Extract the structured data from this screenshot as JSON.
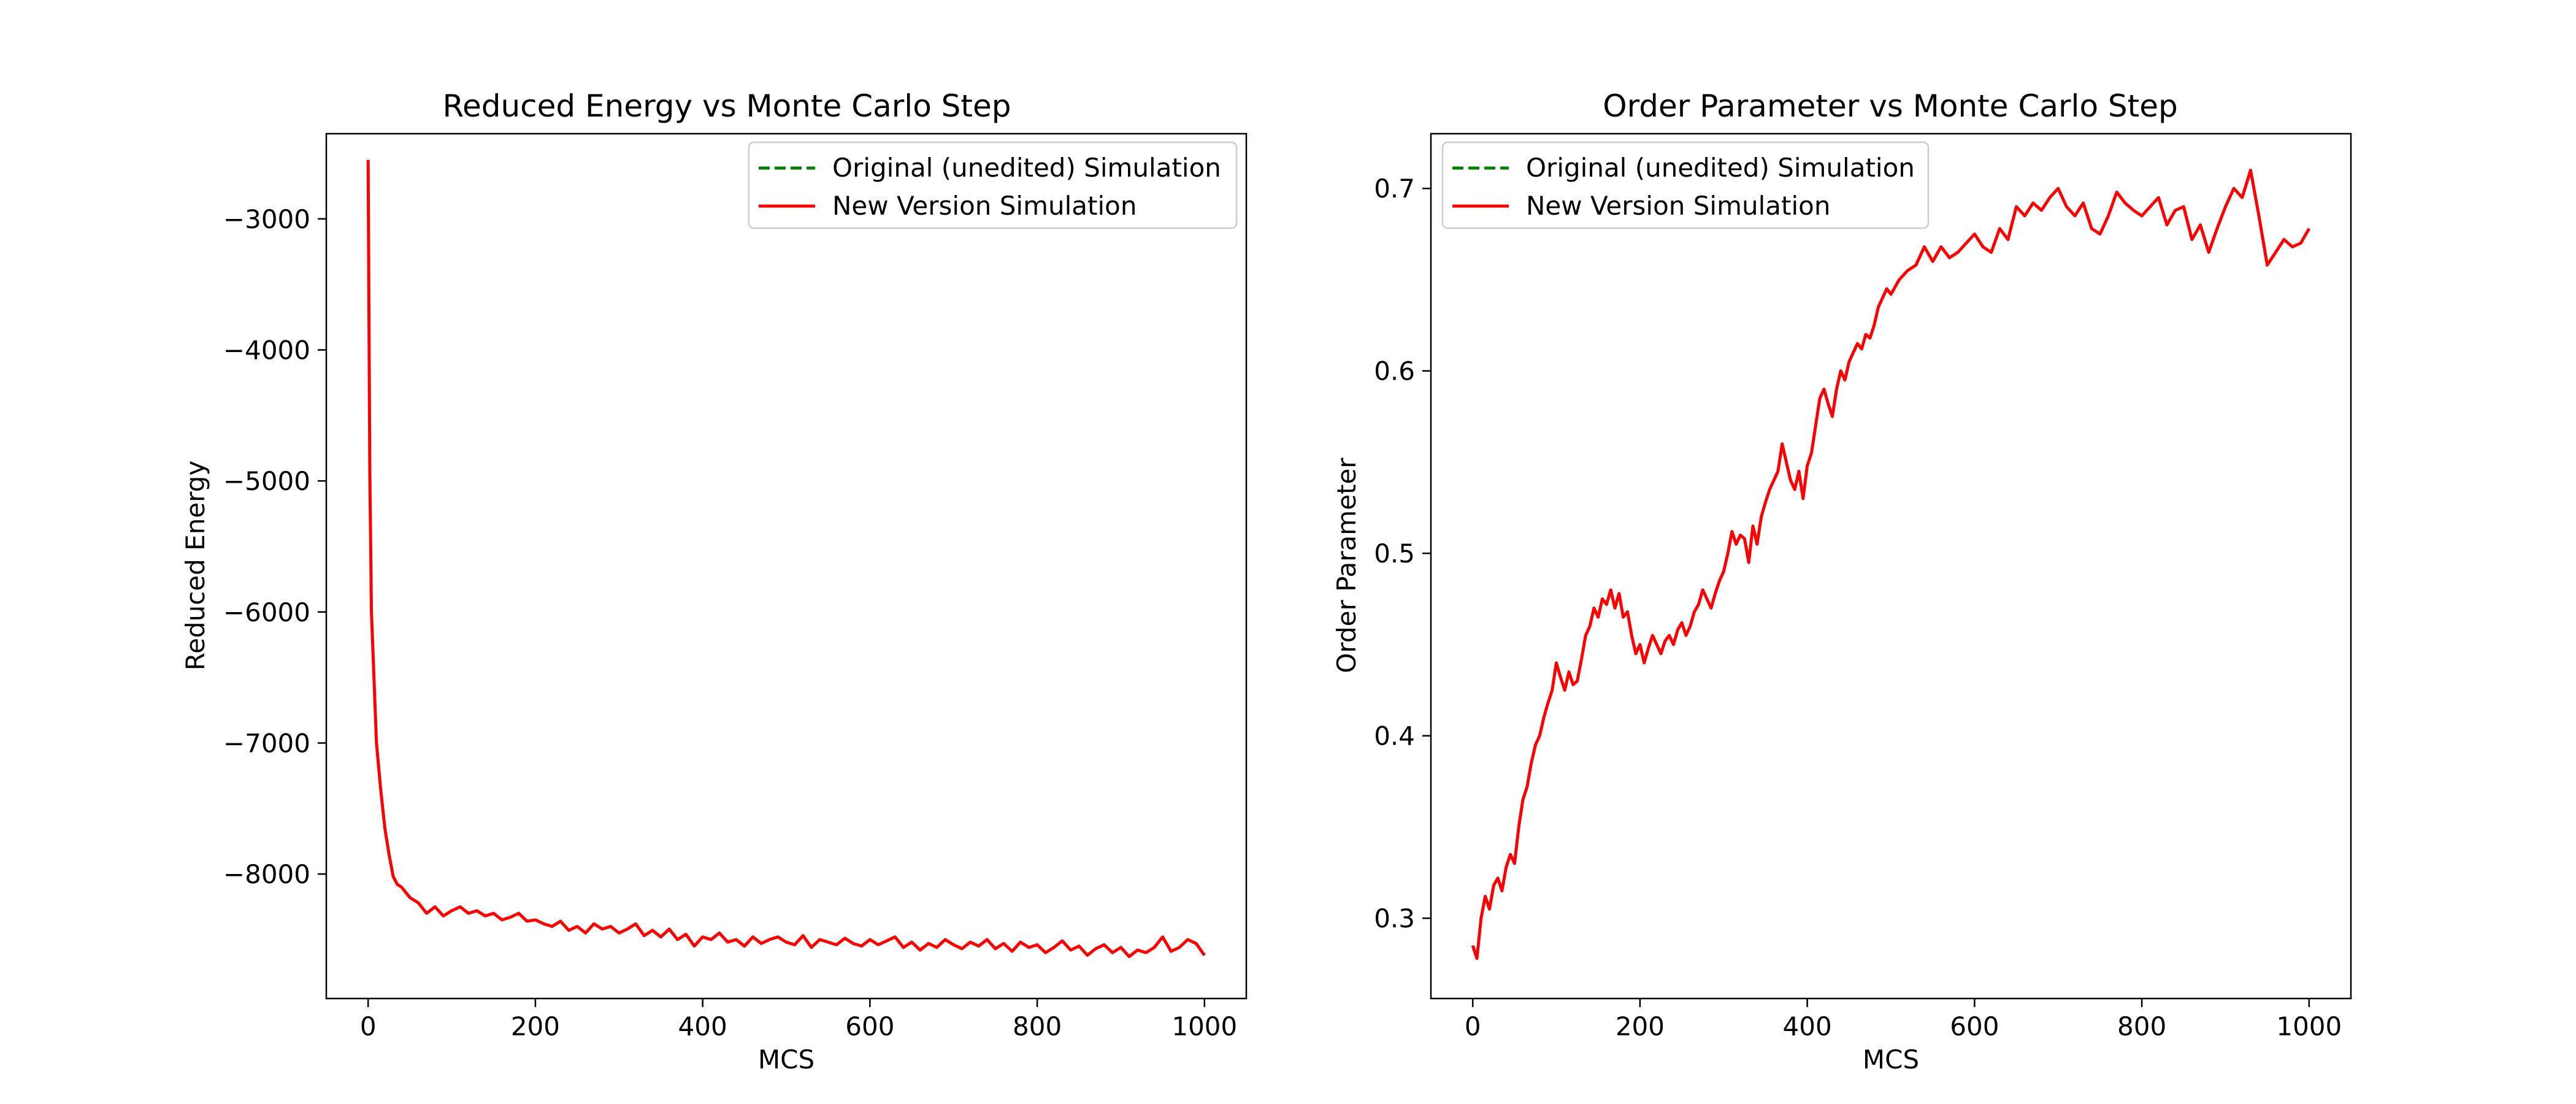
{
  "chart_data": [
    {
      "type": "line",
      "title": "Reduced Energy vs Monte Carlo Step",
      "xlabel": "MCS",
      "ylabel": "Reduced Energy",
      "xlim": [
        -50,
        1050
      ],
      "ylim": [
        -8950,
        -2350
      ],
      "xticks": [
        0,
        200,
        400,
        600,
        800,
        1000
      ],
      "xtick_labels": [
        "0",
        "200",
        "400",
        "600",
        "800",
        "1000"
      ],
      "yticks": [
        -3000,
        -4000,
        -5000,
        -6000,
        -7000,
        -8000
      ],
      "ytick_labels": [
        "−3000",
        "−4000",
        "−5000",
        "−6000",
        "−7000",
        "−8000"
      ],
      "legend_position": "top-right",
      "grid": false,
      "series": [
        {
          "name": "Original (unedited) Simulation",
          "color": "#008000",
          "dash": "dashed",
          "x": [],
          "y": []
        },
        {
          "name": "New Version Simulation",
          "color": "#ff0000",
          "dash": "solid",
          "x": [
            0,
            2,
            4,
            7,
            10,
            15,
            20,
            25,
            30,
            35,
            40,
            50,
            60,
            70,
            80,
            90,
            100,
            110,
            120,
            130,
            140,
            150,
            160,
            170,
            180,
            190,
            200,
            210,
            220,
            230,
            240,
            250,
            260,
            270,
            280,
            290,
            300,
            310,
            320,
            330,
            340,
            350,
            360,
            370,
            380,
            390,
            400,
            410,
            420,
            430,
            440,
            450,
            460,
            470,
            480,
            490,
            500,
            510,
            520,
            530,
            540,
            550,
            560,
            570,
            580,
            590,
            600,
            610,
            620,
            630,
            640,
            650,
            660,
            670,
            680,
            690,
            700,
            710,
            720,
            730,
            740,
            750,
            760,
            770,
            780,
            790,
            800,
            810,
            820,
            830,
            840,
            850,
            860,
            870,
            880,
            890,
            900,
            910,
            920,
            930,
            940,
            950,
            960,
            970,
            980,
            990,
            1000
          ],
          "y": [
            -2550,
            -4900,
            -6000,
            -6500,
            -7000,
            -7350,
            -7650,
            -7850,
            -8020,
            -8080,
            -8100,
            -8180,
            -8220,
            -8300,
            -8250,
            -8320,
            -8280,
            -8250,
            -8300,
            -8280,
            -8320,
            -8300,
            -8350,
            -8330,
            -8300,
            -8360,
            -8350,
            -8380,
            -8400,
            -8360,
            -8430,
            -8400,
            -8450,
            -8380,
            -8420,
            -8400,
            -8450,
            -8420,
            -8380,
            -8470,
            -8430,
            -8480,
            -8420,
            -8500,
            -8460,
            -8550,
            -8480,
            -8500,
            -8450,
            -8520,
            -8500,
            -8550,
            -8480,
            -8530,
            -8500,
            -8480,
            -8520,
            -8540,
            -8470,
            -8560,
            -8500,
            -8520,
            -8540,
            -8490,
            -8530,
            -8550,
            -8500,
            -8540,
            -8510,
            -8480,
            -8560,
            -8520,
            -8580,
            -8530,
            -8560,
            -8500,
            -8540,
            -8570,
            -8520,
            -8550,
            -8500,
            -8570,
            -8530,
            -8590,
            -8520,
            -8560,
            -8540,
            -8600,
            -8560,
            -8510,
            -8580,
            -8550,
            -8620,
            -8570,
            -8540,
            -8600,
            -8560,
            -8630,
            -8580,
            -8600,
            -8560,
            -8480,
            -8590,
            -8560,
            -8500,
            -8530,
            -8620
          ]
        }
      ]
    },
    {
      "type": "line",
      "title": "Order Parameter vs Monte Carlo Step",
      "xlabel": "MCS",
      "ylabel": "Order Parameter",
      "xlim": [
        -50,
        1050
      ],
      "ylim": [
        0.256,
        0.73
      ],
      "xticks": [
        0,
        200,
        400,
        600,
        800,
        1000
      ],
      "xtick_labels": [
        "0",
        "200",
        "400",
        "600",
        "800",
        "1000"
      ],
      "yticks": [
        0.3,
        0.4,
        0.5,
        0.6,
        0.7
      ],
      "ytick_labels": [
        "0.3",
        "0.4",
        "0.5",
        "0.6",
        "0.7"
      ],
      "legend_position": "top-left",
      "grid": false,
      "series": [
        {
          "name": "Original (unedited) Simulation",
          "color": "#008000",
          "dash": "dashed",
          "x": [],
          "y": []
        },
        {
          "name": "New Version Simulation",
          "color": "#ff0000",
          "dash": "solid",
          "x": [
            0,
            5,
            10,
            15,
            20,
            25,
            30,
            35,
            40,
            45,
            50,
            55,
            60,
            65,
            70,
            75,
            80,
            85,
            90,
            95,
            100,
            105,
            110,
            115,
            120,
            125,
            130,
            135,
            140,
            145,
            150,
            155,
            160,
            165,
            170,
            175,
            180,
            185,
            190,
            195,
            200,
            205,
            210,
            215,
            220,
            225,
            230,
            235,
            240,
            245,
            250,
            255,
            260,
            265,
            270,
            275,
            280,
            285,
            290,
            295,
            300,
            305,
            310,
            315,
            320,
            325,
            330,
            335,
            340,
            345,
            350,
            355,
            360,
            365,
            370,
            375,
            380,
            385,
            390,
            395,
            400,
            405,
            410,
            415,
            420,
            425,
            430,
            435,
            440,
            445,
            450,
            455,
            460,
            465,
            470,
            475,
            480,
            485,
            490,
            495,
            500,
            510,
            520,
            530,
            540,
            550,
            560,
            570,
            580,
            590,
            600,
            610,
            620,
            630,
            640,
            650,
            660,
            670,
            680,
            690,
            700,
            710,
            720,
            730,
            740,
            750,
            760,
            770,
            780,
            790,
            800,
            810,
            820,
            830,
            840,
            850,
            860,
            870,
            880,
            890,
            900,
            910,
            920,
            930,
            940,
            950,
            960,
            970,
            980,
            990,
            1000
          ],
          "y": [
            0.285,
            0.278,
            0.3,
            0.312,
            0.305,
            0.318,
            0.322,
            0.315,
            0.328,
            0.335,
            0.33,
            0.35,
            0.365,
            0.372,
            0.385,
            0.395,
            0.4,
            0.41,
            0.418,
            0.425,
            0.44,
            0.432,
            0.425,
            0.435,
            0.428,
            0.43,
            0.442,
            0.455,
            0.46,
            0.47,
            0.465,
            0.475,
            0.472,
            0.48,
            0.47,
            0.478,
            0.465,
            0.468,
            0.455,
            0.445,
            0.45,
            0.44,
            0.448,
            0.455,
            0.45,
            0.445,
            0.452,
            0.455,
            0.45,
            0.458,
            0.462,
            0.455,
            0.46,
            0.468,
            0.472,
            0.48,
            0.475,
            0.47,
            0.478,
            0.485,
            0.49,
            0.5,
            0.512,
            0.505,
            0.51,
            0.508,
            0.495,
            0.515,
            0.505,
            0.52,
            0.528,
            0.535,
            0.54,
            0.545,
            0.56,
            0.55,
            0.54,
            0.535,
            0.545,
            0.53,
            0.548,
            0.555,
            0.57,
            0.585,
            0.59,
            0.582,
            0.575,
            0.59,
            0.6,
            0.595,
            0.605,
            0.61,
            0.615,
            0.612,
            0.62,
            0.618,
            0.625,
            0.635,
            0.64,
            0.645,
            0.642,
            0.65,
            0.655,
            0.658,
            0.668,
            0.66,
            0.668,
            0.662,
            0.665,
            0.67,
            0.675,
            0.668,
            0.665,
            0.678,
            0.672,
            0.69,
            0.685,
            0.692,
            0.688,
            0.695,
            0.7,
            0.69,
            0.685,
            0.692,
            0.678,
            0.675,
            0.685,
            0.698,
            0.692,
            0.688,
            0.685,
            0.69,
            0.695,
            0.68,
            0.688,
            0.69,
            0.672,
            0.68,
            0.665,
            0.678,
            0.69,
            0.7,
            0.695,
            0.71,
            0.685,
            0.658,
            0.665,
            0.672,
            0.668,
            0.67,
            0.678
          ]
        }
      ]
    }
  ]
}
